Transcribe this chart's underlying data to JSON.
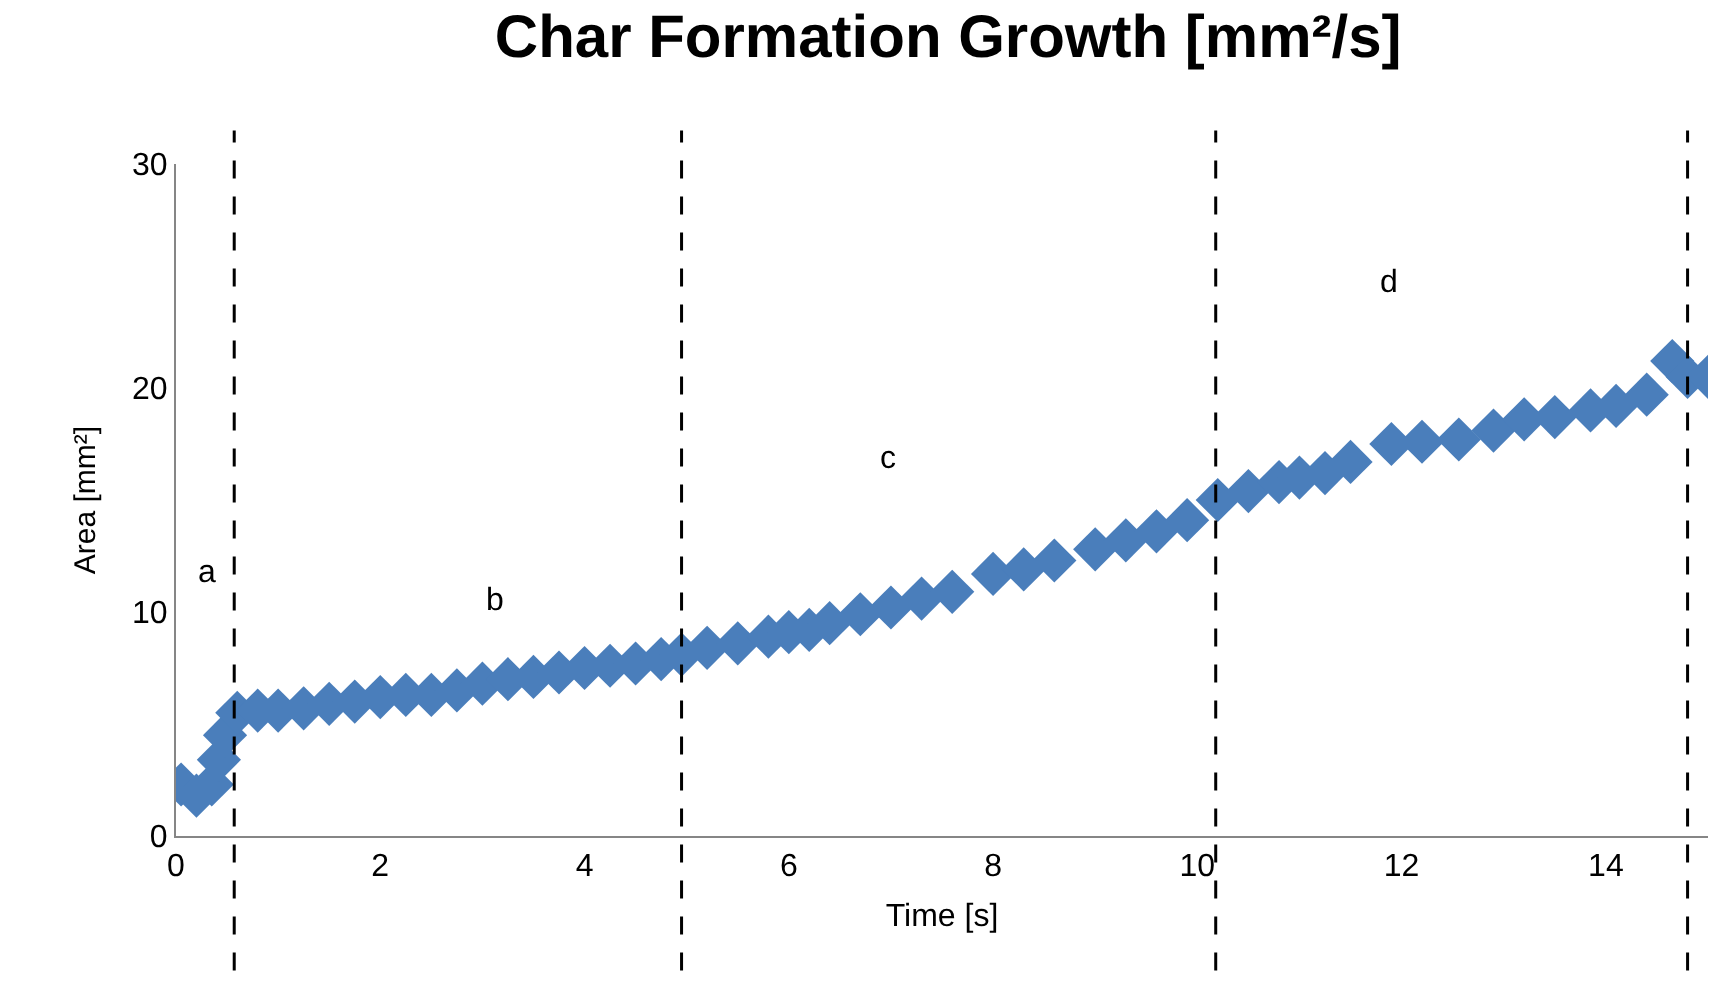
{
  "chart_data": {
    "type": "scatter",
    "title": "Char Formation Growth [mm²/s]",
    "xlabel": "Time [s]",
    "ylabel": "Area [mm²]",
    "x": [
      0.05,
      0.2,
      0.35,
      0.42,
      0.48,
      0.6,
      0.8,
      1.0,
      1.25,
      1.5,
      1.75,
      2.0,
      2.25,
      2.5,
      2.75,
      3.0,
      3.25,
      3.5,
      3.75,
      4.0,
      4.25,
      4.5,
      4.75,
      4.95,
      5.2,
      5.5,
      5.8,
      6.0,
      6.2,
      6.4,
      6.7,
      7.0,
      7.3,
      7.6,
      8.0,
      8.3,
      8.6,
      9.0,
      9.3,
      9.6,
      9.9,
      10.2,
      10.5,
      10.8,
      11.0,
      11.25,
      11.5,
      11.9,
      12.2,
      12.56,
      12.9,
      13.2,
      13.5,
      13.85,
      14.1,
      14.4,
      14.65,
      14.8,
      15.0
    ],
    "series": [
      {
        "color": "#4a7ebb",
        "values": [
          2.3,
          1.8,
          2.3,
          3.4,
          4.5,
          5.5,
          5.6,
          5.6,
          5.7,
          5.9,
          6.0,
          6.2,
          6.3,
          6.3,
          6.5,
          6.8,
          7.0,
          7.1,
          7.3,
          7.5,
          7.6,
          7.7,
          7.9,
          8.1,
          8.4,
          8.6,
          8.9,
          9.1,
          9.2,
          9.5,
          9.9,
          10.2,
          10.6,
          10.9,
          11.7,
          11.9,
          12.3,
          12.8,
          13.2,
          13.6,
          14.1,
          15.0,
          15.4,
          15.8,
          16.0,
          16.2,
          16.7,
          17.5,
          17.6,
          17.7,
          18.1,
          18.6,
          18.7,
          19.0,
          19.2,
          19.7,
          21.2,
          20.5,
          20.5
        ]
      }
    ],
    "xlim": [
      0,
      15
    ],
    "xticks": [
      0,
      2,
      4,
      6,
      8,
      10,
      12,
      14
    ],
    "ylim": [
      0,
      30
    ],
    "yticks": [
      0,
      10,
      20,
      30
    ],
    "marker": "diamond",
    "ref_lines": [
      {
        "axis": "x",
        "value": 0.57,
        "line_style": "dashed",
        "color": "#000000"
      },
      {
        "axis": "x",
        "value": 4.95,
        "line_style": "dashed",
        "color": "#000000"
      },
      {
        "axis": "x",
        "value": 10.18,
        "line_style": "dashed",
        "color": "#000000"
      },
      {
        "axis": "x",
        "value": 14.8,
        "line_style": "dashed",
        "color": "#000000"
      }
    ],
    "annotations": [
      "a",
      "b",
      "c",
      "d"
    ]
  }
}
